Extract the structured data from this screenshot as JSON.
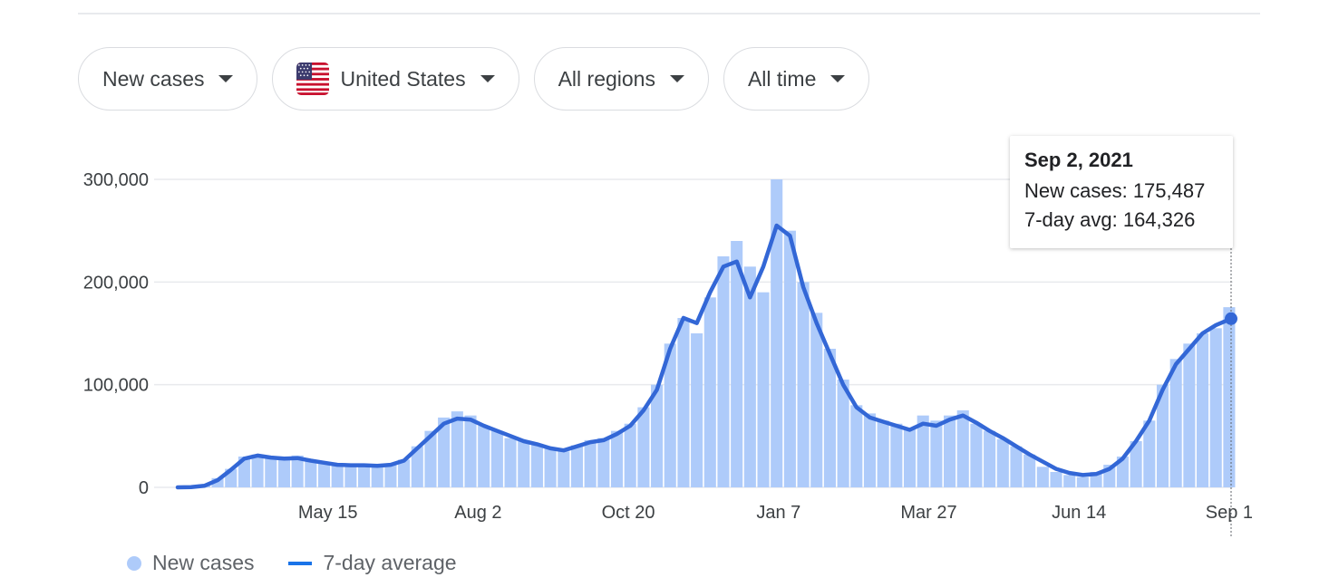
{
  "filters": {
    "metric": "New cases",
    "location": "United States",
    "location_flag_icon": "us-flag-icon",
    "regions": "All regions",
    "period": "All time"
  },
  "tooltip": {
    "date": "Sep 2, 2021",
    "new_cases_text": "New cases: 175,487",
    "avg_text": "7-day avg: 164,326"
  },
  "legend": {
    "bars_label": "New cases",
    "line_label": "7-day average"
  },
  "colors": {
    "bars": "#aecbfa",
    "line": "#3367d6",
    "grid": "#e8eaed"
  },
  "chart_data": {
    "type": "bar",
    "title": "",
    "xlabel": "",
    "ylabel": "",
    "ylim": [
      0,
      300000
    ],
    "y_ticks": [
      0,
      100000,
      200000,
      300000
    ],
    "y_tick_labels": [
      "0",
      "100,000",
      "200,000",
      "300,000"
    ],
    "x_tick_labels": [
      "May 15",
      "Aug 2",
      "Oct 20",
      "Jan 7",
      "Mar 27",
      "Jun 14",
      "Sep 1"
    ],
    "x_tick_dates": [
      "2020-05-15",
      "2020-08-02",
      "2020-10-20",
      "2021-01-07",
      "2021-03-27",
      "2021-06-14",
      "2021-09-01"
    ],
    "x_range": [
      "2020-02-26",
      "2021-09-02"
    ],
    "series": [
      {
        "name": "New cases",
        "type": "bar",
        "note_granularity": "weekly samples of daily new cases",
        "dates": [
          "2020-02-26",
          "2020-03-04",
          "2020-03-11",
          "2020-03-18",
          "2020-03-25",
          "2020-04-01",
          "2020-04-08",
          "2020-04-15",
          "2020-04-22",
          "2020-04-29",
          "2020-05-06",
          "2020-05-13",
          "2020-05-20",
          "2020-05-27",
          "2020-06-03",
          "2020-06-10",
          "2020-06-17",
          "2020-06-24",
          "2020-07-01",
          "2020-07-08",
          "2020-07-15",
          "2020-07-22",
          "2020-07-29",
          "2020-08-05",
          "2020-08-12",
          "2020-08-19",
          "2020-08-26",
          "2020-09-02",
          "2020-09-09",
          "2020-09-16",
          "2020-09-23",
          "2020-09-30",
          "2020-10-07",
          "2020-10-14",
          "2020-10-21",
          "2020-10-28",
          "2020-11-04",
          "2020-11-11",
          "2020-11-18",
          "2020-11-25",
          "2020-12-02",
          "2020-12-09",
          "2020-12-16",
          "2020-12-23",
          "2020-12-30",
          "2021-01-06",
          "2021-01-13",
          "2021-01-20",
          "2021-01-27",
          "2021-02-03",
          "2021-02-10",
          "2021-02-17",
          "2021-02-24",
          "2021-03-03",
          "2021-03-10",
          "2021-03-17",
          "2021-03-24",
          "2021-03-31",
          "2021-04-07",
          "2021-04-14",
          "2021-04-21",
          "2021-04-28",
          "2021-05-05",
          "2021-05-12",
          "2021-05-19",
          "2021-05-26",
          "2021-06-02",
          "2021-06-09",
          "2021-06-16",
          "2021-06-23",
          "2021-06-30",
          "2021-07-07",
          "2021-07-14",
          "2021-07-21",
          "2021-07-28",
          "2021-08-04",
          "2021-08-11",
          "2021-08-18",
          "2021-08-25",
          "2021-09-01"
        ],
        "values": [
          0,
          500,
          3000,
          9000,
          18000,
          30000,
          32000,
          29000,
          28000,
          31000,
          26000,
          24000,
          22000,
          21000,
          22000,
          21000,
          23000,
          27000,
          40000,
          55000,
          68000,
          74000,
          70000,
          60000,
          55000,
          48000,
          45000,
          42000,
          38000,
          35000,
          41000,
          46000,
          48000,
          55000,
          62000,
          78000,
          100000,
          140000,
          165000,
          150000,
          185000,
          225000,
          240000,
          215000,
          190000,
          300000,
          250000,
          200000,
          170000,
          135000,
          105000,
          80000,
          72000,
          65000,
          62000,
          58000,
          70000,
          65000,
          70000,
          75000,
          62000,
          55000,
          47000,
          40000,
          32000,
          20000,
          15000,
          12000,
          10000,
          15000,
          22000,
          30000,
          45000,
          65000,
          100000,
          125000,
          140000,
          150000,
          155000,
          175487
        ]
      },
      {
        "name": "7-day average",
        "type": "line",
        "dates": [
          "2020-02-26",
          "2020-03-04",
          "2020-03-11",
          "2020-03-18",
          "2020-03-25",
          "2020-04-01",
          "2020-04-08",
          "2020-04-15",
          "2020-04-22",
          "2020-04-29",
          "2020-05-06",
          "2020-05-13",
          "2020-05-20",
          "2020-05-27",
          "2020-06-03",
          "2020-06-10",
          "2020-06-17",
          "2020-06-24",
          "2020-07-01",
          "2020-07-08",
          "2020-07-15",
          "2020-07-22",
          "2020-07-29",
          "2020-08-05",
          "2020-08-12",
          "2020-08-19",
          "2020-08-26",
          "2020-09-02",
          "2020-09-09",
          "2020-09-16",
          "2020-09-23",
          "2020-09-30",
          "2020-10-07",
          "2020-10-14",
          "2020-10-21",
          "2020-10-28",
          "2020-11-04",
          "2020-11-11",
          "2020-11-18",
          "2020-11-25",
          "2020-12-02",
          "2020-12-09",
          "2020-12-16",
          "2020-12-23",
          "2020-12-30",
          "2021-01-06",
          "2021-01-13",
          "2021-01-20",
          "2021-01-27",
          "2021-02-03",
          "2021-02-10",
          "2021-02-17",
          "2021-02-24",
          "2021-03-03",
          "2021-03-10",
          "2021-03-17",
          "2021-03-24",
          "2021-03-31",
          "2021-04-07",
          "2021-04-14",
          "2021-04-21",
          "2021-04-28",
          "2021-05-05",
          "2021-05-12",
          "2021-05-19",
          "2021-05-26",
          "2021-06-02",
          "2021-06-09",
          "2021-06-16",
          "2021-06-23",
          "2021-06-30",
          "2021-07-07",
          "2021-07-14",
          "2021-07-21",
          "2021-07-28",
          "2021-08-04",
          "2021-08-11",
          "2021-08-18",
          "2021-08-25",
          "2021-09-02"
        ],
        "values": [
          0,
          200,
          1500,
          7000,
          17000,
          28000,
          31000,
          29000,
          28000,
          28500,
          26000,
          24000,
          22000,
          21500,
          21500,
          21000,
          22000,
          26000,
          38000,
          50000,
          62000,
          67000,
          66000,
          60000,
          55000,
          50000,
          45000,
          42000,
          38000,
          36000,
          40000,
          44000,
          46000,
          52000,
          60000,
          75000,
          95000,
          135000,
          165000,
          160000,
          190000,
          215000,
          220000,
          185000,
          215000,
          255000,
          245000,
          195000,
          160000,
          130000,
          100000,
          78000,
          68000,
          64000,
          60000,
          56000,
          62000,
          60000,
          66000,
          70000,
          63000,
          55000,
          48000,
          40000,
          32000,
          25000,
          18000,
          14000,
          12000,
          13000,
          18000,
          28000,
          45000,
          65000,
          95000,
          120000,
          135000,
          150000,
          158000,
          164326
        ]
      }
    ],
    "highlight": {
      "date": "2021-09-02",
      "new_cases": 175487,
      "avg": 164326
    }
  }
}
